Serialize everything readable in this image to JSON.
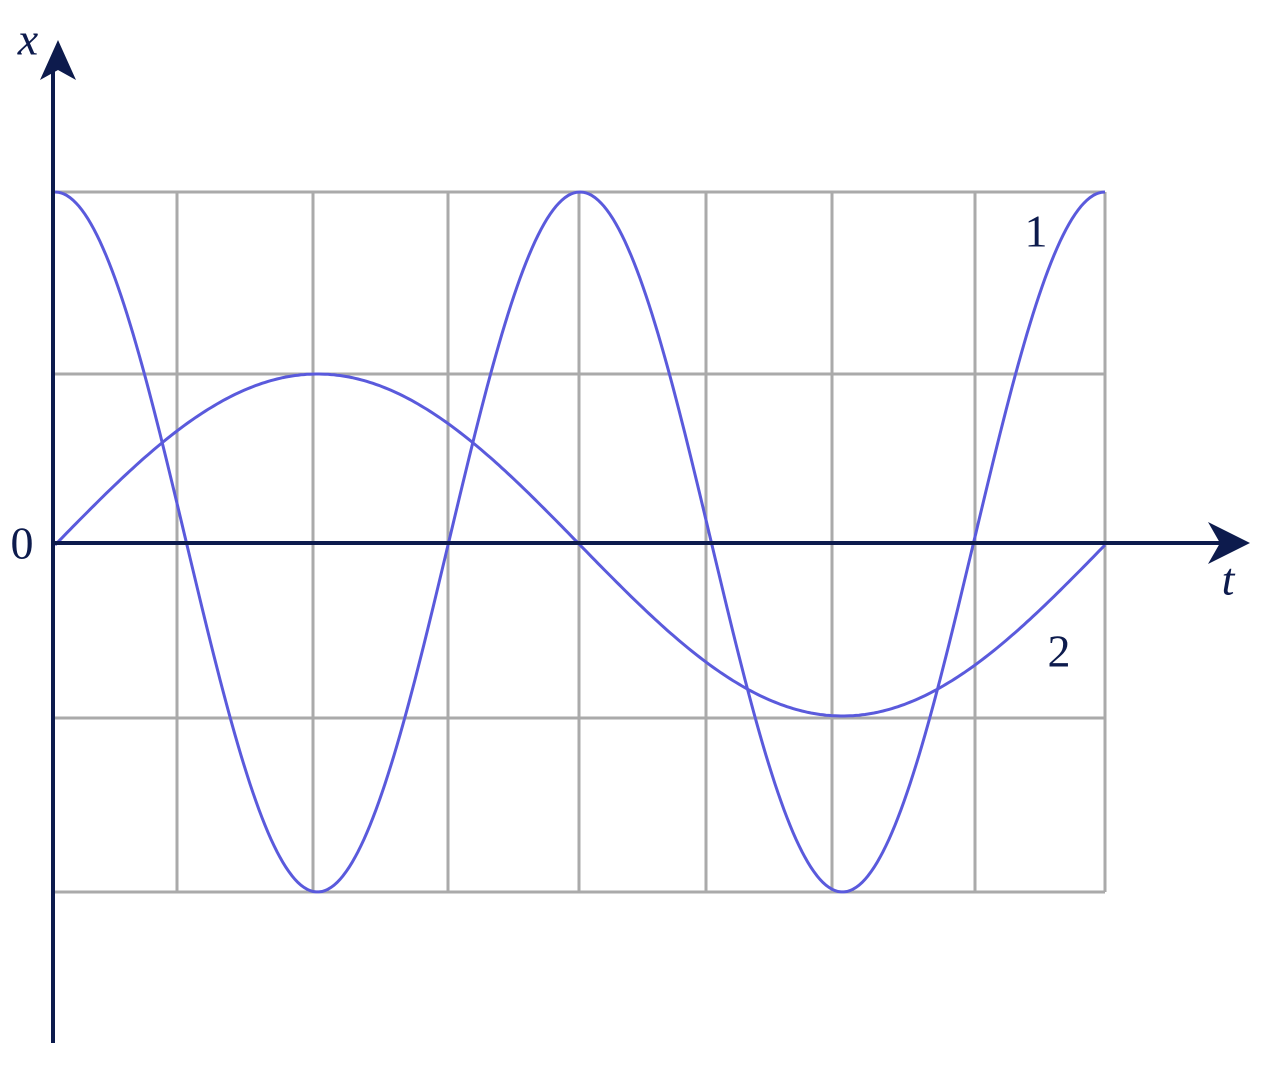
{
  "labels": {
    "x_axis": "x",
    "t_axis": "t",
    "origin": "0",
    "curve_1": "1",
    "curve_2": "2"
  }
}
